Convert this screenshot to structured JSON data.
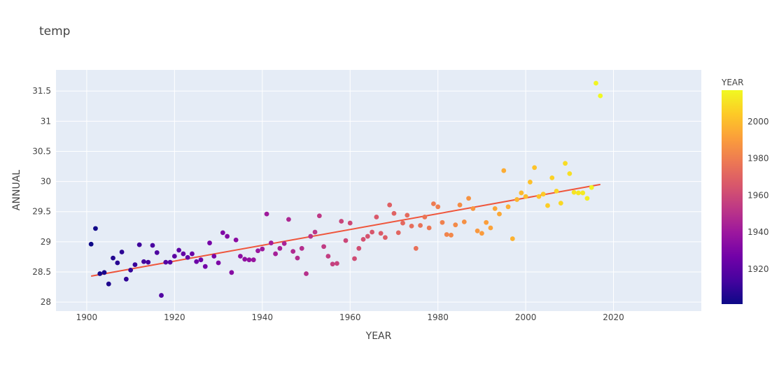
{
  "chart_data": {
    "type": "scatter",
    "title": "temp",
    "xlabel": "YEAR",
    "ylabel": "ANNUAL",
    "xlim": [
      1893,
      2040
    ],
    "ylim": [
      27.85,
      31.85
    ],
    "x_ticks": [
      1900,
      1920,
      1940,
      1960,
      1980,
      2000,
      2020
    ],
    "x_tick_labels": [
      "1900",
      "1920",
      "1940",
      "1960",
      "1980",
      "2000",
      "2020"
    ],
    "y_ticks": [
      28,
      28.5,
      29,
      29.5,
      30,
      30.5,
      31,
      31.5
    ],
    "y_tick_labels": [
      "28",
      "28.5",
      "29",
      "29.5",
      "30",
      "30.5",
      "31",
      "31.5"
    ],
    "grid": true,
    "plot_background": "#e5ecf6",
    "colorbar": {
      "title": "YEAR",
      "range": [
        1901,
        2017
      ],
      "ticks": [
        1920,
        1940,
        1960,
        1980,
        2000
      ],
      "tick_labels": [
        "1920",
        "1940",
        "1960",
        "1980",
        "2000"
      ],
      "colorscale": [
        "#0d0887",
        "#46039f",
        "#7201a8",
        "#9c179e",
        "#bd3786",
        "#d8576b",
        "#ed7953",
        "#fb9f3a",
        "#fdca26",
        "#f0f921"
      ]
    },
    "trendline": {
      "x": [
        1901,
        2017
      ],
      "y": [
        28.43,
        29.95
      ],
      "color": "#ef553b"
    },
    "points": {
      "x": [
        1901,
        1902,
        1903,
        1904,
        1905,
        1906,
        1907,
        1908,
        1909,
        1910,
        1911,
        1912,
        1913,
        1914,
        1915,
        1916,
        1917,
        1918,
        1919,
        1920,
        1921,
        1922,
        1923,
        1924,
        1925,
        1926,
        1927,
        1928,
        1929,
        1930,
        1931,
        1932,
        1933,
        1934,
        1935,
        1936,
        1937,
        1938,
        1939,
        1940,
        1941,
        1942,
        1943,
        1944,
        1945,
        1946,
        1947,
        1948,
        1949,
        1950,
        1951,
        1952,
        1953,
        1954,
        1955,
        1956,
        1957,
        1958,
        1959,
        1960,
        1961,
        1962,
        1963,
        1964,
        1965,
        1966,
        1967,
        1968,
        1969,
        1970,
        1971,
        1972,
        1973,
        1974,
        1975,
        1976,
        1977,
        1978,
        1979,
        1980,
        1981,
        1982,
        1983,
        1984,
        1985,
        1986,
        1987,
        1988,
        1989,
        1990,
        1991,
        1992,
        1993,
        1994,
        1995,
        1996,
        1997,
        1998,
        1999,
        2000,
        2001,
        2002,
        2003,
        2004,
        2005,
        2006,
        2007,
        2008,
        2009,
        2010,
        2011,
        2012,
        2013,
        2014,
        2015,
        2016,
        2017
      ],
      "y": [
        28.96,
        29.22,
        28.47,
        28.49,
        28.3,
        28.73,
        28.65,
        28.83,
        28.38,
        28.53,
        28.62,
        28.95,
        28.67,
        28.66,
        28.94,
        28.82,
        28.11,
        28.66,
        28.66,
        28.76,
        28.86,
        28.8,
        28.74,
        28.8,
        28.67,
        28.7,
        28.59,
        28.98,
        28.76,
        28.65,
        29.15,
        29.09,
        28.49,
        29.03,
        28.76,
        28.71,
        28.7,
        28.7,
        28.85,
        28.88,
        29.46,
        28.98,
        28.8,
        28.89,
        28.97,
        29.37,
        28.84,
        28.73,
        28.89,
        28.47,
        29.09,
        29.16,
        29.43,
        28.92,
        28.76,
        28.63,
        28.64,
        29.34,
        29.02,
        29.31,
        28.72,
        28.89,
        29.04,
        29.09,
        29.16,
        29.41,
        29.14,
        29.07,
        29.61,
        29.47,
        29.15,
        29.31,
        29.44,
        29.26,
        28.89,
        29.27,
        29.41,
        29.23,
        29.63,
        29.58,
        29.32,
        29.12,
        29.11,
        29.28,
        29.61,
        29.33,
        29.72,
        29.55,
        29.18,
        29.14,
        29.32,
        29.23,
        29.55,
        29.46,
        30.18,
        29.58,
        29.05,
        29.7,
        29.81,
        29.75,
        29.99,
        30.23,
        29.75,
        29.79,
        29.6,
        30.06,
        29.84,
        29.64,
        30.3,
        30.13,
        29.82,
        29.81,
        29.81,
        29.72,
        29.9,
        31.63,
        31.42
      ]
    }
  }
}
